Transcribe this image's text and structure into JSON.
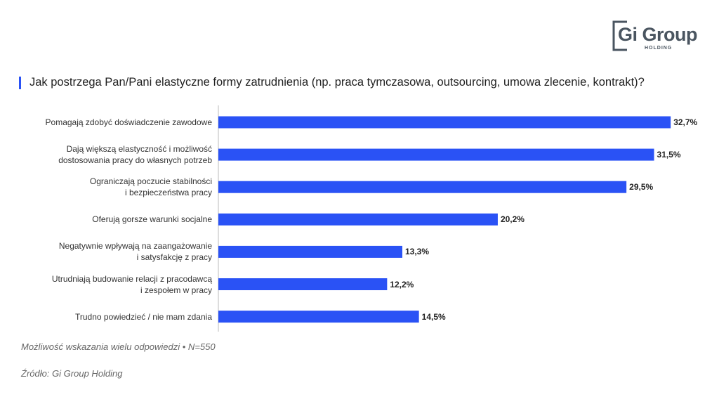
{
  "logo": {
    "name": "Gi Group",
    "sub": "HOLDING"
  },
  "chart_data": {
    "type": "bar",
    "orientation": "horizontal",
    "title": "Jak postrzega Pan/Pani elastyczne formy zatrudnienia (np. praca tymczasowa, outsourcing, umowa zlecenie, kontrakt)?",
    "categories": [
      "Pomagają zdobyć doświadczenie zawodowe",
      "Dają większą elastyczność i możliwość\ndostosowania pracy do własnych potrzeb",
      "Ograniczają poczucie stabilności\ni bezpieczeństwa pracy",
      "Oferują gorsze warunki socjalne",
      "Negatywnie wpływają na zaangażowanie\ni satysfakcję z pracy",
      "Utrudniają budowanie relacji z pracodawcą\ni zespołem w pracy",
      "Trudno powiedzieć / nie mam zdania"
    ],
    "values": [
      32.7,
      31.5,
      29.5,
      20.2,
      13.3,
      12.2,
      14.5
    ],
    "value_labels": [
      "32,7%",
      "31,5%",
      "29,5%",
      "20,2%",
      "13,3%",
      "12,2%",
      "14,5%"
    ],
    "color": "#2a52f5",
    "note": "Możliwość wskazania wielu odpowiedzi • N=550",
    "source": "Źródło: Gi Group Holding"
  }
}
